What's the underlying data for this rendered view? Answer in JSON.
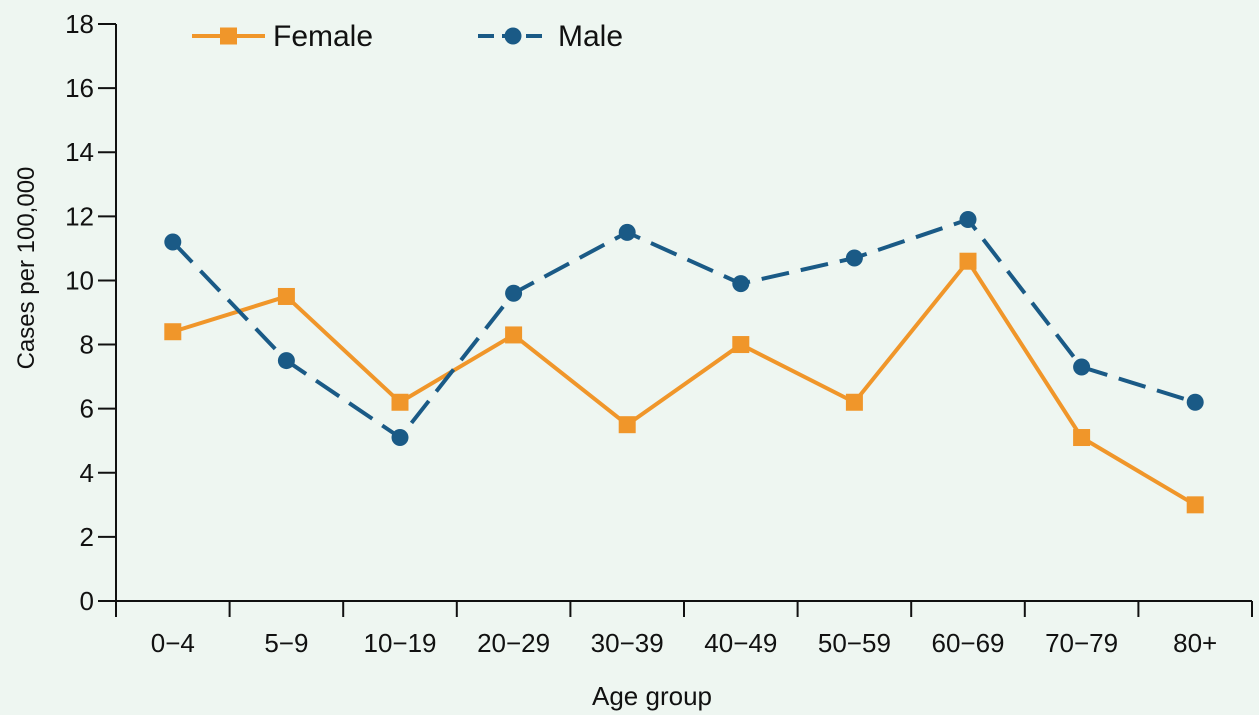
{
  "chart_data": {
    "type": "line",
    "title": "",
    "xlabel": "Age group",
    "ylabel": "Cases per  100,000",
    "categories": [
      "0−4",
      "5−9",
      "10−19",
      "20−29",
      "30−39",
      "40−49",
      "50−59",
      "60−69",
      "70−79",
      "80+"
    ],
    "ylim": [
      0,
      18
    ],
    "yticks": [
      0,
      2,
      4,
      6,
      8,
      10,
      12,
      14,
      16,
      18
    ],
    "grid": false,
    "legend_position": "top-left",
    "series": [
      {
        "name": "Female",
        "color": "#f0962a",
        "marker": "square",
        "line_style": "solid",
        "values": [
          8.4,
          9.5,
          6.2,
          8.3,
          5.5,
          8.0,
          6.2,
          10.6,
          5.1,
          3.0
        ]
      },
      {
        "name": "Male",
        "color": "#1a5a86",
        "marker": "circle",
        "line_style": "dashed",
        "values": [
          11.2,
          7.5,
          5.1,
          9.6,
          11.5,
          9.9,
          10.7,
          11.9,
          7.3,
          6.2
        ]
      }
    ]
  }
}
